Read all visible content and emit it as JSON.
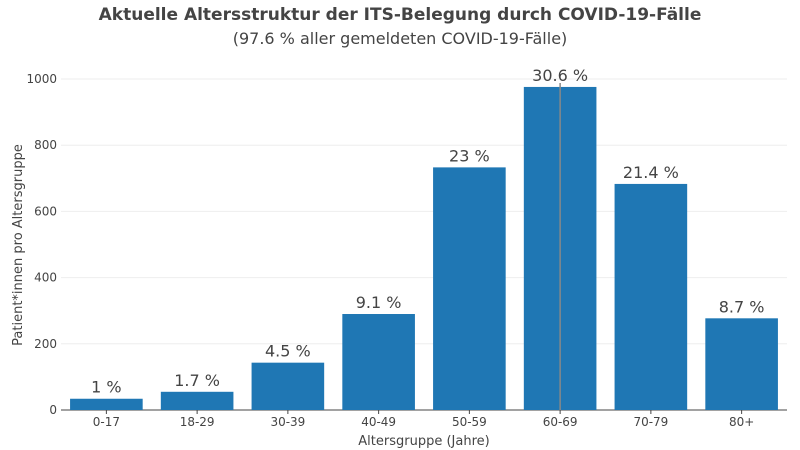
{
  "chart_data": {
    "type": "bar",
    "title": "Aktuelle Altersstruktur der ITS-Belegung durch COVID-19-Fälle",
    "subtitle": "(97.6 % aller gemeldeten COVID-19-Fälle)",
    "xlabel": "Altersgruppe (Jahre)",
    "ylabel": "Patient*innen pro Altersgruppe",
    "categories": [
      "0-17",
      "18-29",
      "30-39",
      "40-49",
      "50-59",
      "60-69",
      "70-79",
      "80+"
    ],
    "values": [
      34,
      55,
      143,
      290,
      733,
      976,
      683,
      277
    ],
    "data_labels": [
      "1 %",
      "1.7 %",
      "4.5 %",
      "9.1 %",
      "23 %",
      "30.6 %",
      "21.4 %",
      "8.7 %"
    ],
    "ylim": [
      0,
      1000
    ],
    "yticks": [
      0,
      200,
      400,
      600,
      800,
      1000
    ],
    "grid": true,
    "colors": {
      "bar": "#1f77b4",
      "grid": "#eeeeee",
      "hover_line": "#888888"
    }
  }
}
